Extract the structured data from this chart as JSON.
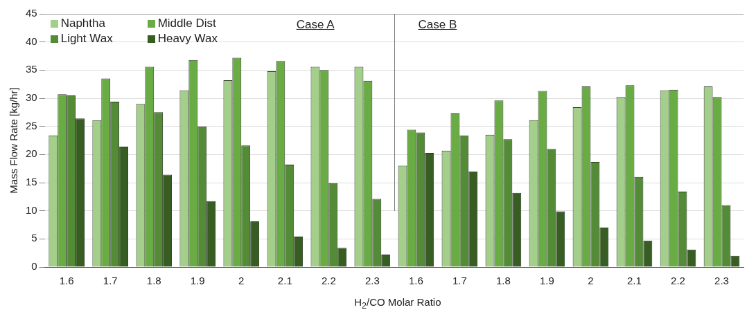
{
  "chart_data": {
    "type": "bar",
    "xlabel": "H$_{2}$/CO Molar Ratio",
    "ylabel": "Mass Flow Rate [kg/hr]",
    "categories": [
      "1.6",
      "1.7",
      "1.8",
      "1.9",
      "2",
      "2.1",
      "2.2",
      "2.3",
      "1.6",
      "1.7",
      "1.8",
      "1.9",
      "2",
      "2.1",
      "2.2",
      "2.3"
    ],
    "series": [
      {
        "name": "Naphtha",
        "color": "#a3cf8a",
        "values": [
          23.4,
          26.1,
          29.0,
          31.4,
          33.2,
          34.8,
          35.6,
          35.6,
          18.0,
          20.7,
          23.5,
          26.1,
          28.4,
          30.2,
          31.4,
          32.1
        ]
      },
      {
        "name": "Middle Dist",
        "color": "#6aac44",
        "values": [
          30.7,
          33.5,
          35.6,
          36.8,
          37.2,
          36.6,
          35.0,
          33.1,
          24.4,
          27.3,
          29.6,
          31.3,
          32.1,
          32.3,
          31.5,
          30.2
        ]
      },
      {
        "name": "Light Wax",
        "color": "#548b36",
        "values": [
          30.5,
          29.4,
          27.5,
          25.0,
          21.6,
          18.2,
          14.9,
          12.1,
          23.9,
          23.4,
          22.7,
          21.0,
          18.7,
          16.0,
          13.4,
          11.0
        ]
      },
      {
        "name": "Heavy Wax",
        "color": "#375d22",
        "values": [
          26.4,
          21.4,
          16.4,
          11.7,
          8.1,
          5.4,
          3.4,
          2.2,
          20.3,
          17.0,
          13.2,
          9.9,
          7.0,
          4.7,
          3.1,
          2.0
        ]
      }
    ],
    "ylim": [
      0,
      45
    ],
    "yticks": [
      0,
      5,
      10,
      15,
      20,
      25,
      30,
      35,
      40,
      45
    ],
    "grid": "y",
    "legend": "top left",
    "annotations": [
      "Case A",
      "Case B"
    ]
  }
}
